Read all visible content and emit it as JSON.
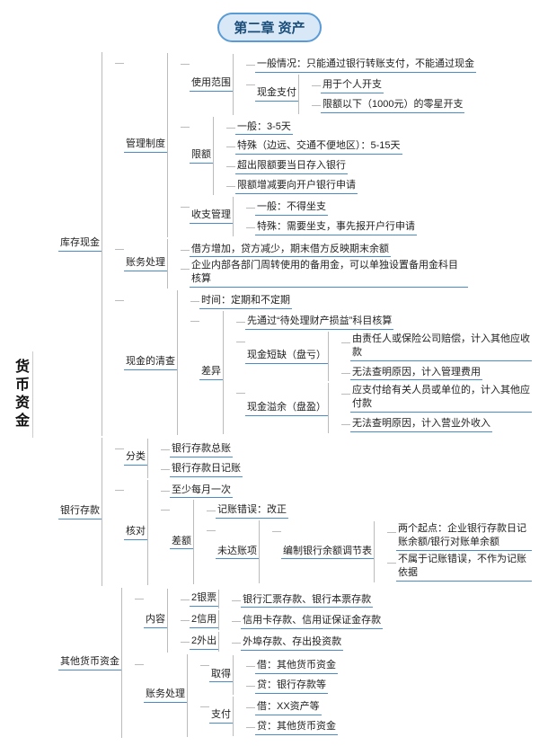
{
  "diagram": {
    "type": "tree",
    "title": "第二章 资产",
    "title_bg": "#d8e8f6",
    "title_border": "#5a9bd5",
    "title_color": "#1a4d7a",
    "underline_color": "#4a8bc8",
    "connector_color": "#bbbbbb",
    "background_color": "#ffffff",
    "node_fontsize": 11,
    "root": {
      "label": "货币资金",
      "children": [
        {
          "label": "库存现金",
          "children": [
            {
              "label": "管理制度",
              "children": [
                {
                  "label": "使用范围",
                  "children": [
                    {
                      "label": "一般情况：只能通过银行转账支付，不能通过现金"
                    },
                    {
                      "label": "现金支付",
                      "children": [
                        {
                          "label": "用于个人开支"
                        },
                        {
                          "label": "限额以下（1000元）的零星开支"
                        }
                      ]
                    }
                  ]
                },
                {
                  "label": "限额",
                  "children": [
                    {
                      "label": "一般：3-5天"
                    },
                    {
                      "label": "特殊（边远、交通不便地区）：5-15天"
                    },
                    {
                      "label": "超出限额要当日存入银行"
                    },
                    {
                      "label": "限额增减要向开户银行申请"
                    }
                  ]
                },
                {
                  "label": "收支管理",
                  "children": [
                    {
                      "label": "一般：不得坐支"
                    },
                    {
                      "label": "特殊：需要坐支，事先报开户行申请"
                    }
                  ]
                }
              ]
            },
            {
              "label": "账务处理",
              "children": [
                {
                  "label": "借方增加，贷方减少，期末借方反映期末余额"
                },
                {
                  "label": "企业内部各部门周转使用的备用金，可以单独设置备用金科目核算"
                }
              ]
            },
            {
              "label": "现金的清查",
              "children": [
                {
                  "label": "时间：定期和不定期"
                },
                {
                  "label": "差异",
                  "children": [
                    {
                      "label": "先通过“待处理财产损益”科目核算"
                    },
                    {
                      "label": "现金短缺（盘亏）",
                      "children": [
                        {
                          "label": "由责任人或保险公司赔偿，计入其他应收款"
                        },
                        {
                          "label": "无法查明原因，计入管理费用"
                        }
                      ]
                    },
                    {
                      "label": "现金溢余（盘盈）",
                      "children": [
                        {
                          "label": "应支付给有关人员或单位的，计入其他应付款"
                        },
                        {
                          "label": "无法查明原因，计入营业外收入"
                        }
                      ]
                    }
                  ]
                }
              ]
            }
          ]
        },
        {
          "label": "银行存款",
          "children": [
            {
              "label": "分类",
              "children": [
                {
                  "label": "银行存款总账"
                },
                {
                  "label": "银行存款日记账"
                }
              ]
            },
            {
              "label": "核对",
              "children": [
                {
                  "label": "至少每月一次"
                },
                {
                  "label": "差额",
                  "children": [
                    {
                      "label": "记账错误：改正"
                    },
                    {
                      "label": "未达账项",
                      "children": [
                        {
                          "label": "编制银行余额调节表",
                          "children": [
                            {
                              "label": "两个起点：企业银行存款日记账余额/银行对账单余额"
                            },
                            {
                              "label": "不属于记账错误，不作为记账依据"
                            }
                          ]
                        }
                      ]
                    }
                  ]
                }
              ]
            }
          ]
        },
        {
          "label": "其他货币资金",
          "children": [
            {
              "label": "内容",
              "children": [
                {
                  "label": "2银票",
                  "children": [
                    {
                      "label": "银行汇票存款、银行本票存款"
                    }
                  ]
                },
                {
                  "label": "2信用",
                  "children": [
                    {
                      "label": "信用卡存款、信用证保证金存款"
                    }
                  ]
                },
                {
                  "label": "2外出",
                  "children": [
                    {
                      "label": "外埠存款、存出投资款"
                    }
                  ]
                }
              ]
            },
            {
              "label": "账务处理",
              "children": [
                {
                  "label": "取得",
                  "children": [
                    {
                      "label": "借：其他货币资金"
                    },
                    {
                      "label": "贷：银行存款等"
                    }
                  ]
                },
                {
                  "label": "支付",
                  "children": [
                    {
                      "label": "借：XX资产等"
                    },
                    {
                      "label": "贷：其他货币资金"
                    }
                  ]
                }
              ]
            }
          ]
        }
      ]
    }
  }
}
